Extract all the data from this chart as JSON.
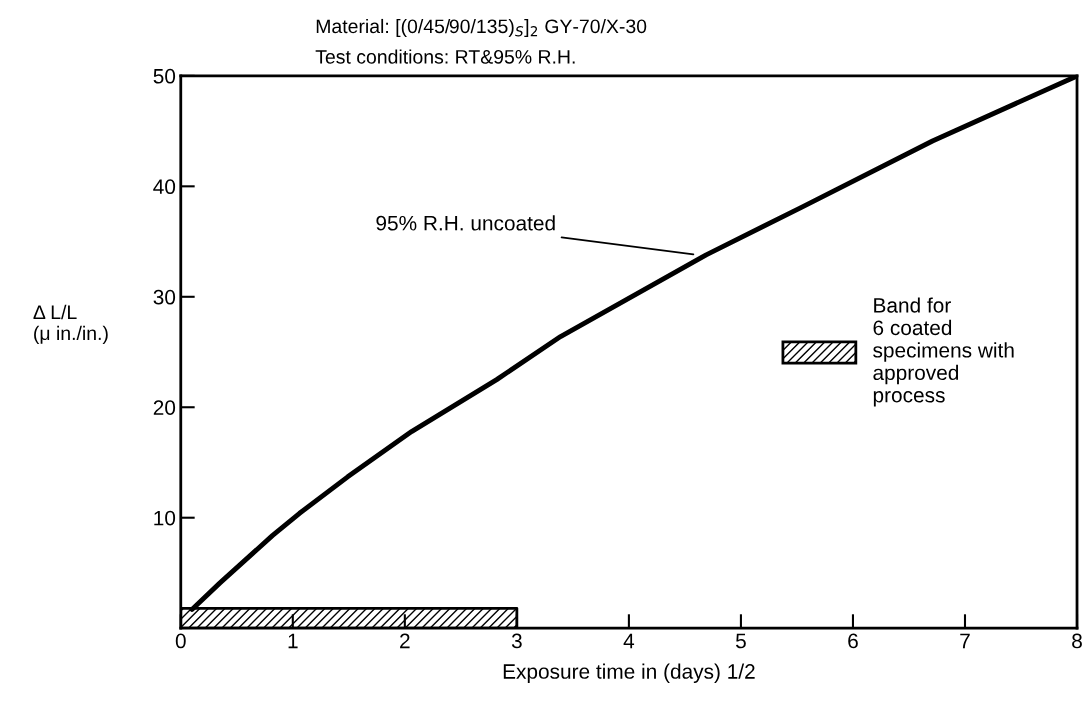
{
  "chart_data": {
    "type": "line",
    "title": "Material: [(0/45/90/135)$_{S}$]$_{2}$ GY-70/X-30",
    "subtitle": "Test conditions: RT&95% R.H.",
    "xlabel": "Exposure time in (days) 1/2",
    "ylabel": "Δ L/L\n(μ in./in.)",
    "xlim": [
      0,
      8
    ],
    "xticks": [
      0,
      1,
      2,
      3,
      4,
      5,
      6,
      7,
      8
    ],
    "ylim": [
      0,
      50
    ],
    "yticks": [
      10,
      20,
      30,
      40,
      50
    ],
    "grid": false,
    "legend": "right",
    "line_style": "solid",
    "marker": "none",
    "series": [
      {
        "color": "#000000",
        "x": [
          0.1,
          0.35,
          0.82,
          1.06,
          1.49,
          2.06,
          2.82,
          3.39,
          4.69,
          5.54,
          6.71,
          7.98
        ],
        "values": [
          1.7,
          4.1,
          8.4,
          10.4,
          13.7,
          17.8,
          22.5,
          26.4,
          33.8,
          38.1,
          44.1,
          49.9
        ]
      },
      {
        "type": "area",
        "name": "Band for\n6 coated\nspecimens with\napproved\nprocess",
        "color": "#000000",
        "x": [
          0,
          3
        ],
        "values": [
          1.8,
          1.8
        ]
      }
    ],
    "annotations": [
      {
        "text": "95% R.H. uncoated",
        "x": 4.6,
        "y": 33.8
      }
    ]
  }
}
